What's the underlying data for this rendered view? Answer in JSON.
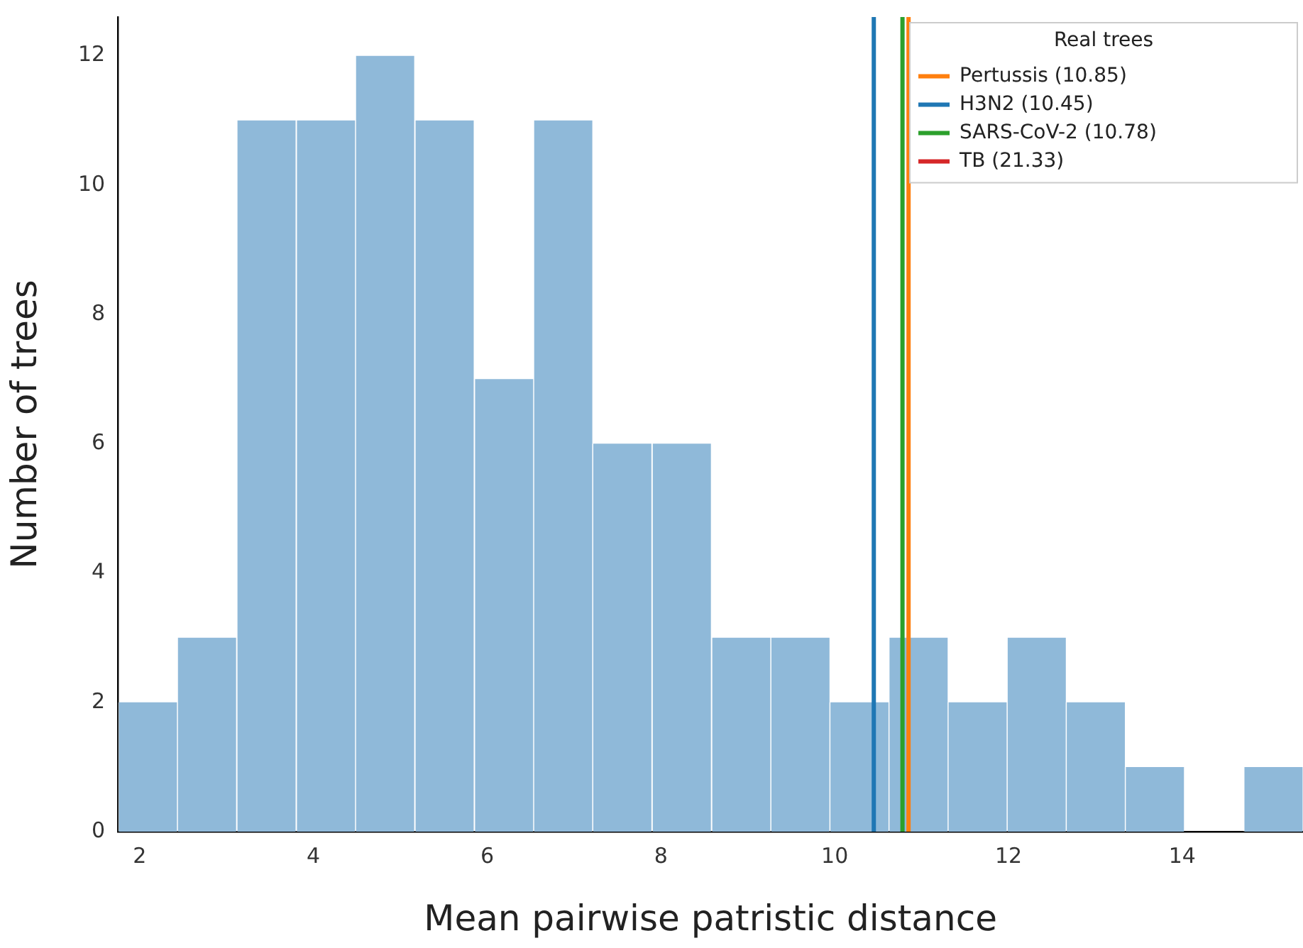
{
  "chart_data": {
    "type": "histogram",
    "xlabel": "Mean pairwise patristic distance",
    "ylabel": "Number of trees",
    "legend_title": "Real trees",
    "legend": "top right",
    "bins": [
      1.75,
      2.43,
      3.11,
      3.8,
      4.48,
      5.16,
      5.85,
      6.53,
      7.21,
      7.89,
      8.58,
      9.26,
      9.94,
      10.62,
      11.3,
      11.98,
      12.66,
      13.34,
      14.02,
      14.7,
      15.39
    ],
    "values": [
      2,
      3,
      11,
      11,
      12,
      11,
      7,
      11,
      6,
      6,
      3,
      3,
      2,
      3,
      2,
      3,
      2,
      1,
      0,
      1
    ],
    "color": "#8fb9d9",
    "series": [
      {
        "type": "line",
        "name": "Pertussis (10.85)",
        "color": "#ff7f0e",
        "x": [
          10.85,
          10.85
        ],
        "values": [
          0,
          12.6
        ]
      },
      {
        "type": "line",
        "name": "H3N2 (10.45)",
        "color": "#1f77b4",
        "x": [
          10.45,
          10.45
        ],
        "values": [
          0,
          12.6
        ]
      },
      {
        "type": "line",
        "name": "SARS-CoV-2 (10.78)",
        "color": "#2ca02c",
        "x": [
          10.78,
          10.78
        ],
        "values": [
          0,
          12.6
        ]
      },
      {
        "type": "line",
        "name": "TB (21.33)",
        "color": "#d62728",
        "x": [
          null,
          null
        ],
        "values": [
          null,
          null
        ]
      }
    ],
    "xlim": [
      1.75,
      15.39
    ],
    "xticks": [
      2,
      4,
      6,
      8,
      10,
      12,
      14
    ],
    "ylim": [
      0,
      12.6
    ],
    "yticks": [
      0,
      2,
      4,
      6,
      8,
      10,
      12
    ],
    "grid": false
  }
}
